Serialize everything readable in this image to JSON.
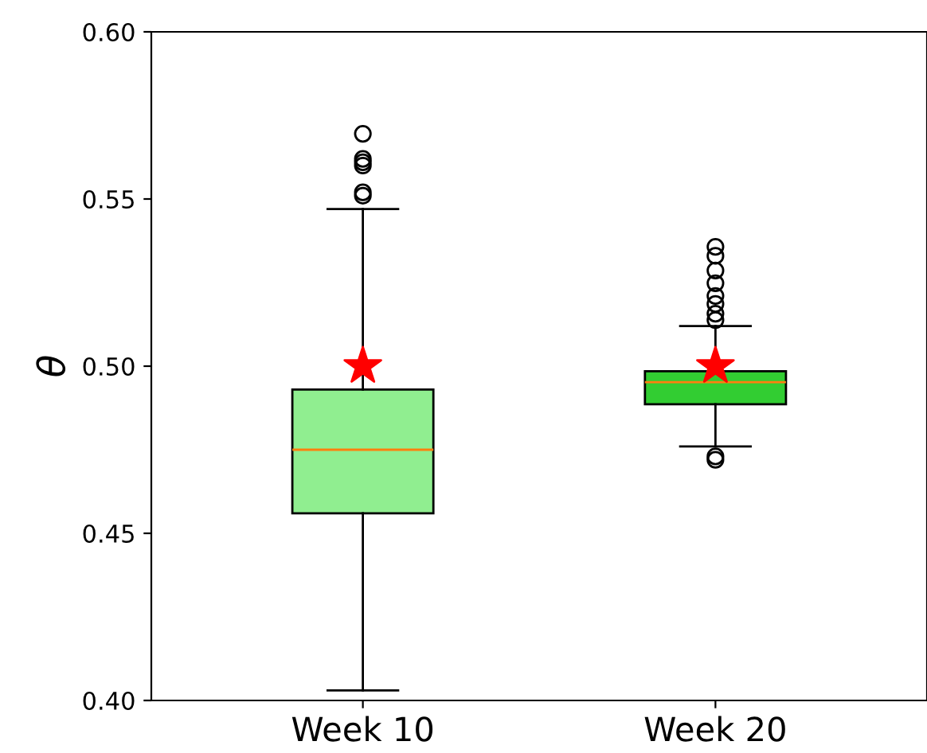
{
  "chart_data": {
    "type": "box",
    "ylabel": "θ",
    "categories": [
      "Week 10",
      "Week 20"
    ],
    "colors": [
      "#90ee90",
      "#32cd32"
    ],
    "boxes": [
      {
        "low": 0.403,
        "q1": 0.456,
        "median": 0.475,
        "q3": 0.493,
        "high": 0.547,
        "outliers": [
          0.551,
          0.552,
          0.56,
          0.561,
          0.562,
          0.5695
        ]
      },
      {
        "low": 0.476,
        "q1": 0.4886,
        "median": 0.4952,
        "q3": 0.4985,
        "high": 0.512,
        "outliers": [
          0.472,
          0.473,
          0.5138,
          0.5157,
          0.5186,
          0.521,
          0.5248,
          0.5286,
          0.533,
          0.5357
        ]
      }
    ],
    "series": [
      {
        "type": "scatter",
        "x": [
          "Week 10",
          "Week 20"
        ],
        "values": [
          0.5,
          0.5
        ],
        "color": "#ff0000",
        "marker": "star"
      }
    ],
    "ylim": [
      0.4,
      0.6
    ],
    "yticks": [
      {
        "value": 0.4,
        "label": "0.40"
      },
      0.45,
      {
        "value": 0.5,
        "label": "0.50"
      },
      0.55,
      {
        "value": 0.6,
        "label": "0.60"
      }
    ],
    "grid": false,
    "legend": false
  }
}
